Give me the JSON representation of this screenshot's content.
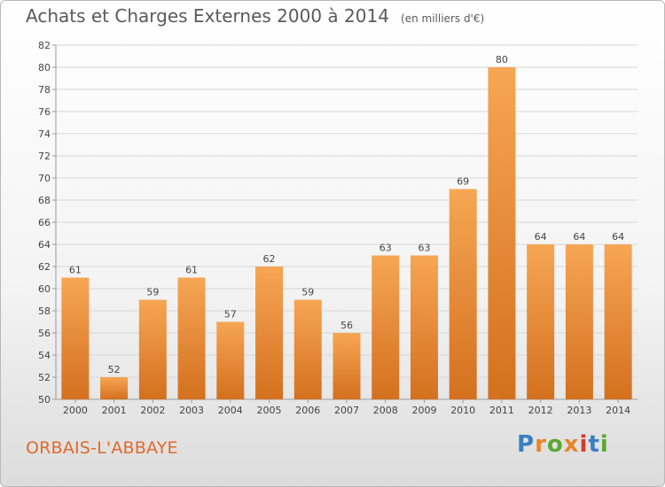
{
  "header": {
    "title": "Achats et Charges Externes 2000 à 2014",
    "subtitle": "(en milliers d'€)"
  },
  "footer": {
    "commune": "ORBAIS-L'ABBAYE",
    "logo_text": "Proxiti"
  },
  "colors": {
    "bar_top": "#f6a654",
    "bar_bottom": "#d4701e",
    "commune_text": "#e06a2a",
    "logo_colors": [
      "#3a7fc1",
      "#e7862a",
      "#5aa832",
      "#e7862a",
      "#d13b2a",
      "#3a7fc1",
      "#5aa832"
    ]
  },
  "chart_data": {
    "type": "bar",
    "title": "Achats et Charges Externes 2000 à 2014",
    "subtitle": "(en milliers d'€)",
    "xlabel": "",
    "ylabel": "",
    "categories": [
      "2000",
      "2001",
      "2002",
      "2003",
      "2004",
      "2005",
      "2006",
      "2007",
      "2008",
      "2009",
      "2010",
      "2011",
      "2012",
      "2013",
      "2014"
    ],
    "values": [
      61,
      52,
      59,
      61,
      57,
      62,
      59,
      56,
      63,
      63,
      69,
      80,
      64,
      64,
      64
    ],
    "ylim": [
      50,
      82
    ],
    "yticks": [
      50,
      52,
      54,
      56,
      58,
      60,
      62,
      64,
      66,
      68,
      70,
      72,
      74,
      76,
      78,
      80,
      82
    ],
    "grid": true,
    "data_labels": true
  }
}
